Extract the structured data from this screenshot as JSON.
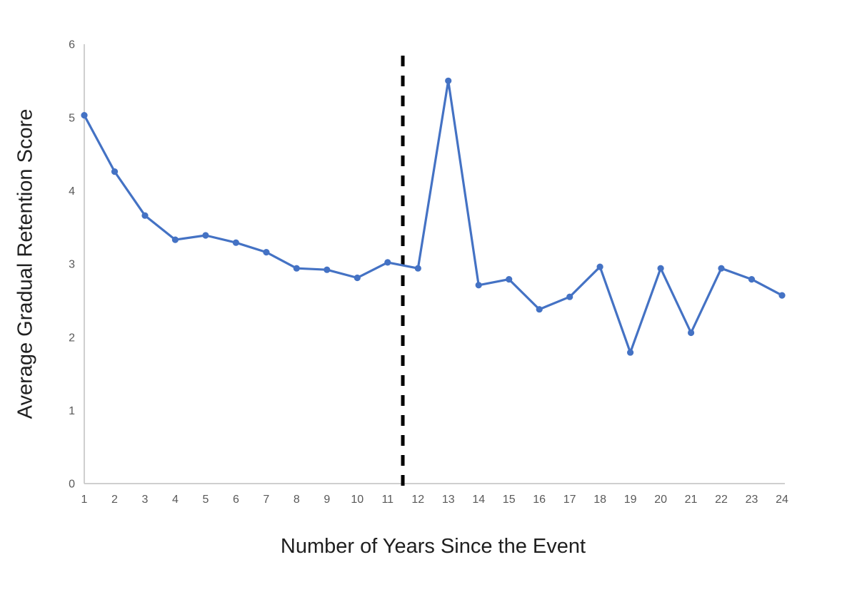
{
  "page": {
    "background": "#ffffff"
  },
  "chart_data": {
    "type": "line",
    "title": "",
    "xlabel": "Number of Years Since the Event",
    "ylabel": "Average Gradual Retention Score",
    "x": [
      1,
      2,
      3,
      4,
      5,
      6,
      7,
      8,
      9,
      10,
      11,
      12,
      13,
      14,
      15,
      16,
      17,
      18,
      19,
      20,
      21,
      22,
      23,
      24
    ],
    "values": [
      5.03,
      4.26,
      3.66,
      3.33,
      3.39,
      3.29,
      3.16,
      2.94,
      2.92,
      2.81,
      3.02,
      2.94,
      5.5,
      2.71,
      2.79,
      2.38,
      2.55,
      2.96,
      1.79,
      2.94,
      2.06,
      2.94,
      2.79,
      2.57
    ],
    "series_name": "Average Gradual Retention Score",
    "xlim": [
      1,
      24
    ],
    "ylim": [
      0,
      6
    ],
    "xticks": [
      1,
      2,
      3,
      4,
      5,
      6,
      7,
      8,
      9,
      10,
      11,
      12,
      13,
      14,
      15,
      16,
      17,
      18,
      19,
      20,
      21,
      22,
      23,
      24
    ],
    "yticks": [
      0,
      1,
      2,
      3,
      4,
      5,
      6
    ],
    "grid": false,
    "legend": false,
    "marker": "circle",
    "annotations": [
      {
        "type": "vline",
        "x": 11.5,
        "style": "dashed",
        "color": "#000000",
        "name": "event-threshold"
      }
    ],
    "colors": {
      "series": "#4472C4",
      "axis": "#BFBFBF",
      "tick_labels": "#595959",
      "axis_titles": "#1F1F1F",
      "annotation": "#000000"
    }
  }
}
